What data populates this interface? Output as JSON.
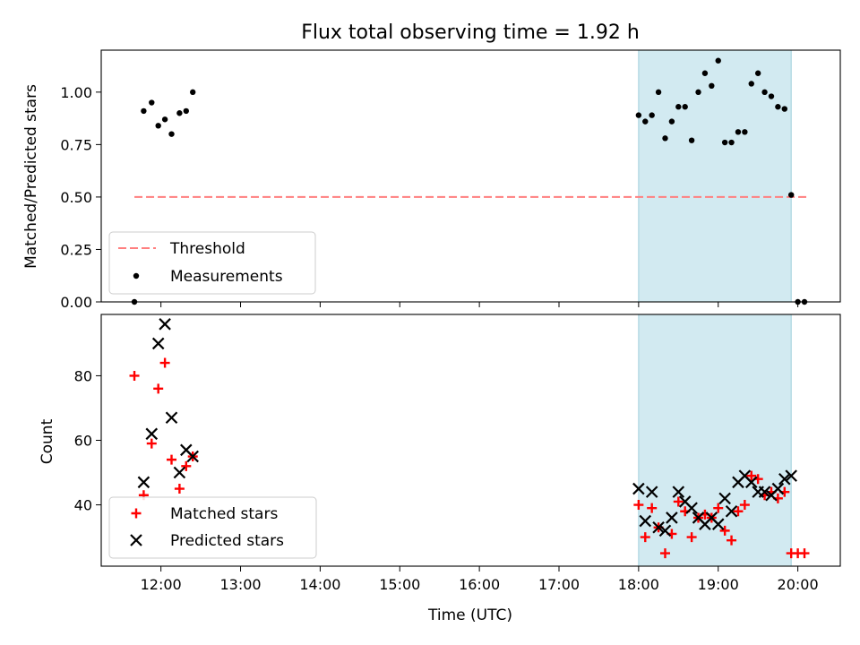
{
  "title": "Flux total observing time = 1.92 h",
  "chart_data": [
    {
      "type": "scatter",
      "ylabel": "Matched/Predicted stars",
      "xlim": [
        "11:15",
        "20:32"
      ],
      "ylim": [
        0,
        1.2
      ],
      "yticks": [
        "0.00",
        "0.25",
        "0.50",
        "0.75",
        "1.00"
      ],
      "legend_position": "lower-left",
      "shaded_span": [
        "18:00",
        "19:55"
      ],
      "shaded_color": "#add8e6",
      "threshold": {
        "name": "Threshold",
        "value": 0.5,
        "x_range": [
          "11:40",
          "20:07"
        ],
        "color": "#ff7f7f"
      },
      "measurements": {
        "name": "Measurements",
        "color": "#000000",
        "points": [
          [
            "11:40",
            0.0
          ],
          [
            "11:47",
            0.91
          ],
          [
            "11:53",
            0.95
          ],
          [
            "11:58",
            0.84
          ],
          [
            "12:03",
            0.87
          ],
          [
            "12:08",
            0.8
          ],
          [
            "12:14",
            0.9
          ],
          [
            "12:19",
            0.91
          ],
          [
            "12:24",
            1.0
          ],
          [
            "18:00",
            0.89
          ],
          [
            "18:05",
            0.86
          ],
          [
            "18:10",
            0.89
          ],
          [
            "18:15",
            1.0
          ],
          [
            "18:20",
            0.78
          ],
          [
            "18:25",
            0.86
          ],
          [
            "18:30",
            0.93
          ],
          [
            "18:35",
            0.93
          ],
          [
            "18:40",
            0.77
          ],
          [
            "18:45",
            1.0
          ],
          [
            "18:50",
            1.09
          ],
          [
            "18:55",
            1.03
          ],
          [
            "19:00",
            1.15
          ],
          [
            "19:05",
            0.76
          ],
          [
            "19:10",
            0.76
          ],
          [
            "19:15",
            0.81
          ],
          [
            "19:20",
            0.81
          ],
          [
            "19:25",
            1.04
          ],
          [
            "19:30",
            1.09
          ],
          [
            "19:35",
            1.0
          ],
          [
            "19:40",
            0.98
          ],
          [
            "19:45",
            0.93
          ],
          [
            "19:50",
            0.92
          ],
          [
            "19:55",
            0.51
          ],
          [
            "20:00",
            0.0
          ],
          [
            "20:05",
            0.0
          ]
        ]
      }
    },
    {
      "type": "scatter",
      "ylabel": "Count",
      "xlabel": "Time (UTC)",
      "xlim": [
        "11:15",
        "20:32"
      ],
      "ylim": [
        21,
        99
      ],
      "yticks": [
        "40",
        "60",
        "80"
      ],
      "xticks": [
        "12:00",
        "13:00",
        "14:00",
        "15:00",
        "16:00",
        "17:00",
        "18:00",
        "19:00",
        "20:00"
      ],
      "legend_position": "lower-left",
      "shaded_span": [
        "18:00",
        "19:55"
      ],
      "series": [
        {
          "name": "Matched stars",
          "marker": "plus",
          "color": "#ff0000",
          "points": [
            [
              "11:40",
              80
            ],
            [
              "11:47",
              43
            ],
            [
              "11:53",
              59
            ],
            [
              "11:58",
              76
            ],
            [
              "12:03",
              84
            ],
            [
              "12:08",
              54
            ],
            [
              "12:14",
              45
            ],
            [
              "12:19",
              52
            ],
            [
              "12:24",
              55
            ],
            [
              "18:00",
              40
            ],
            [
              "18:05",
              30
            ],
            [
              "18:10",
              39
            ],
            [
              "18:15",
              33
            ],
            [
              "18:20",
              25
            ],
            [
              "18:25",
              31
            ],
            [
              "18:30",
              41
            ],
            [
              "18:35",
              38
            ],
            [
              "18:40",
              30
            ],
            [
              "18:45",
              36
            ],
            [
              "18:50",
              37
            ],
            [
              "18:55",
              36
            ],
            [
              "19:00",
              39
            ],
            [
              "19:05",
              32
            ],
            [
              "19:10",
              29
            ],
            [
              "19:15",
              38
            ],
            [
              "19:20",
              40
            ],
            [
              "19:25",
              49
            ],
            [
              "19:30",
              48
            ],
            [
              "19:35",
              43
            ],
            [
              "19:40",
              44
            ],
            [
              "19:45",
              42
            ],
            [
              "19:50",
              44
            ],
            [
              "19:55",
              25
            ],
            [
              "20:00",
              25
            ],
            [
              "20:05",
              25
            ]
          ]
        },
        {
          "name": "Predicted stars",
          "marker": "x",
          "color": "#000000",
          "points": [
            [
              "11:47",
              47
            ],
            [
              "11:53",
              62
            ],
            [
              "11:58",
              90
            ],
            [
              "12:03",
              96
            ],
            [
              "12:08",
              67
            ],
            [
              "12:14",
              50
            ],
            [
              "12:19",
              57
            ],
            [
              "12:24",
              55
            ],
            [
              "18:00",
              45
            ],
            [
              "18:05",
              35
            ],
            [
              "18:10",
              44
            ],
            [
              "18:15",
              33
            ],
            [
              "18:20",
              32
            ],
            [
              "18:25",
              36
            ],
            [
              "18:30",
              44
            ],
            [
              "18:35",
              41
            ],
            [
              "18:40",
              39
            ],
            [
              "18:45",
              36
            ],
            [
              "18:50",
              34
            ],
            [
              "18:55",
              36
            ],
            [
              "19:00",
              34
            ],
            [
              "19:05",
              42
            ],
            [
              "19:10",
              38
            ],
            [
              "19:15",
              47
            ],
            [
              "19:20",
              49
            ],
            [
              "19:25",
              47
            ],
            [
              "19:30",
              44
            ],
            [
              "19:35",
              44
            ],
            [
              "19:40",
              43
            ],
            [
              "19:45",
              45
            ],
            [
              "19:50",
              48
            ],
            [
              "19:55",
              49
            ]
          ]
        }
      ]
    }
  ]
}
